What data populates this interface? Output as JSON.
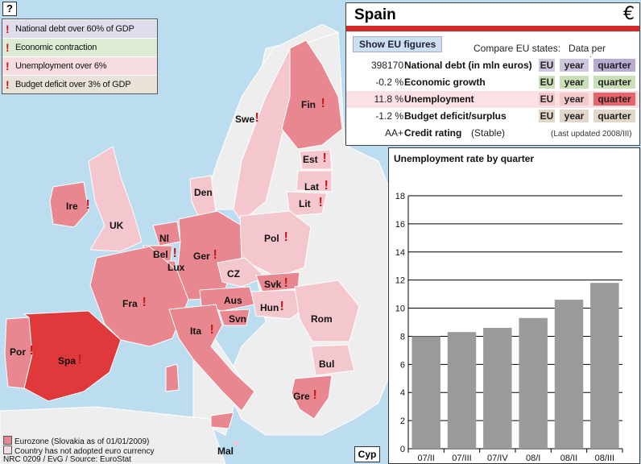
{
  "help": "?",
  "legend": [
    {
      "label": "National debt over 60% of GDP",
      "color": "#e1dcec"
    },
    {
      "label": "Economic contraction",
      "color": "#dcebd2"
    },
    {
      "label": "Unemployment over 6%",
      "color": "#f8dde0"
    },
    {
      "label": "Budget deficit over 3% of GDP",
      "color": "#e9e2d9"
    }
  ],
  "panel": {
    "country": "Spain",
    "euro": "€",
    "show_eu": "Show EU figures",
    "compare": "Compare EU states:",
    "per_country": "Data per country:",
    "rows": [
      {
        "value": "398170",
        "label": "National debt (in mln euros)",
        "eu": "EU",
        "year": "year",
        "quarter": "quarter",
        "bg": "#ffffff",
        "tag": "#cfc6e0",
        "qtag": "#b8abd4"
      },
      {
        "value": "-0.2 %",
        "label": "Economic growth",
        "eu": "EU",
        "year": "year",
        "quarter": "quarter",
        "bg": "#ffffff",
        "tag": "#c9e0b6",
        "qtag": "#c9e0b6"
      },
      {
        "value": "11.8 %",
        "label": "Unemployment",
        "eu": "EU",
        "year": "year",
        "quarter": "quarter",
        "bg": "#fbe1e3",
        "tag": "#f3c9cc",
        "qtag": "#e8626a"
      },
      {
        "value": "-1.2 %",
        "label": "Budget deficit/surplus",
        "eu": "EU",
        "year": "year",
        "quarter": "quarter",
        "bg": "#ffffff",
        "tag": "#e1d8cb",
        "qtag": "#e1d8cb"
      }
    ],
    "rating_value": "AA+",
    "rating_label": "Credit rating",
    "rating_status": "(Stable)",
    "updated": "(Last updated 2008/III)"
  },
  "map_labels": [
    {
      "name": "Swe",
      "warn": true
    },
    {
      "name": "Fin",
      "warn": true
    },
    {
      "name": "Est",
      "warn": true
    },
    {
      "name": "Lat",
      "warn": true
    },
    {
      "name": "Lit",
      "warn": true
    },
    {
      "name": "Den",
      "warn": false
    },
    {
      "name": "Ire",
      "warn": true
    },
    {
      "name": "UK",
      "warn": false
    },
    {
      "name": "Nl",
      "warn": false
    },
    {
      "name": "Bel",
      "warn": true
    },
    {
      "name": "Lux",
      "warn": false
    },
    {
      "name": "Ger",
      "warn": true
    },
    {
      "name": "Pol",
      "warn": true
    },
    {
      "name": "CZ",
      "warn": false
    },
    {
      "name": "Svk",
      "warn": true
    },
    {
      "name": "Fra",
      "warn": true
    },
    {
      "name": "Aus",
      "warn": false
    },
    {
      "name": "Hun",
      "warn": true
    },
    {
      "name": "Svn",
      "warn": false
    },
    {
      "name": "Rom",
      "warn": false
    },
    {
      "name": "Ita",
      "warn": true
    },
    {
      "name": "Por",
      "warn": true
    },
    {
      "name": "Spa",
      "warn": true
    },
    {
      "name": "Bul",
      "warn": false
    },
    {
      "name": "Gre",
      "warn": true
    },
    {
      "name": "Mal",
      "warn": false
    }
  ],
  "footer": {
    "eurozone": "Eurozone (Slovakia as of 01/01/2009)",
    "not_adopted": "Country has not adopted euro currency",
    "source": "NRC 0209 / EvG / Source: EuroStat",
    "cyp": "Cyp",
    "eurozone_color": "#e8878f",
    "nonadopt_color": "#f7dbe0"
  },
  "chart_data": {
    "type": "bar",
    "title": "Unemployment rate by quarter",
    "categories": [
      "07/II",
      "07/III",
      "07/IV",
      "08/I",
      "08/II",
      "08/III"
    ],
    "values": [
      8.0,
      8.3,
      8.6,
      9.3,
      10.6,
      11.8
    ],
    "ylim": [
      0,
      18
    ],
    "yticks": [
      0,
      2,
      4,
      6,
      8,
      10,
      12,
      14,
      16,
      18
    ],
    "grid": true,
    "bar_color": "#9a9a9a"
  }
}
